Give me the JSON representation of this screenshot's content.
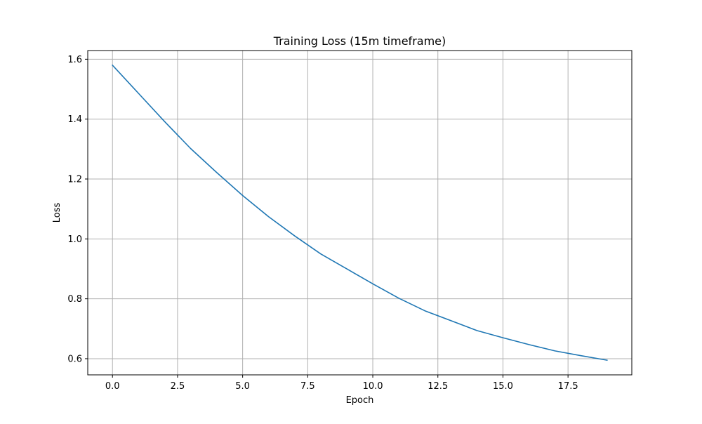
{
  "chart_data": {
    "type": "line",
    "title": "Training Loss (15m timeframe)",
    "xlabel": "Epoch",
    "ylabel": "Loss",
    "xlim": [
      -0.95,
      19.95
    ],
    "ylim": [
      0.546,
      1.629
    ],
    "xticks": [
      0.0,
      2.5,
      5.0,
      7.5,
      10.0,
      12.5,
      15.0,
      17.5
    ],
    "xtick_labels": [
      "0.0",
      "2.5",
      "5.0",
      "7.5",
      "10.0",
      "12.5",
      "15.0",
      "17.5"
    ],
    "yticks": [
      0.6,
      0.8,
      1.0,
      1.2,
      1.4,
      1.6
    ],
    "ytick_labels": [
      "0.6",
      "0.8",
      "1.0",
      "1.2",
      "1.4",
      "1.6"
    ],
    "grid": true,
    "series": [
      {
        "color": "#1f77b4",
        "x": [
          0,
          1,
          2,
          3,
          4,
          5,
          6,
          7,
          8,
          9,
          10,
          11,
          12,
          13,
          14,
          15,
          16,
          17,
          18,
          19
        ],
        "y": [
          1.58,
          1.486,
          1.392,
          1.302,
          1.222,
          1.145,
          1.074,
          1.01,
          0.95,
          0.9,
          0.85,
          0.802,
          0.76,
          0.727,
          0.694,
          0.67,
          0.647,
          0.626,
          0.61,
          0.595
        ]
      }
    ]
  }
}
